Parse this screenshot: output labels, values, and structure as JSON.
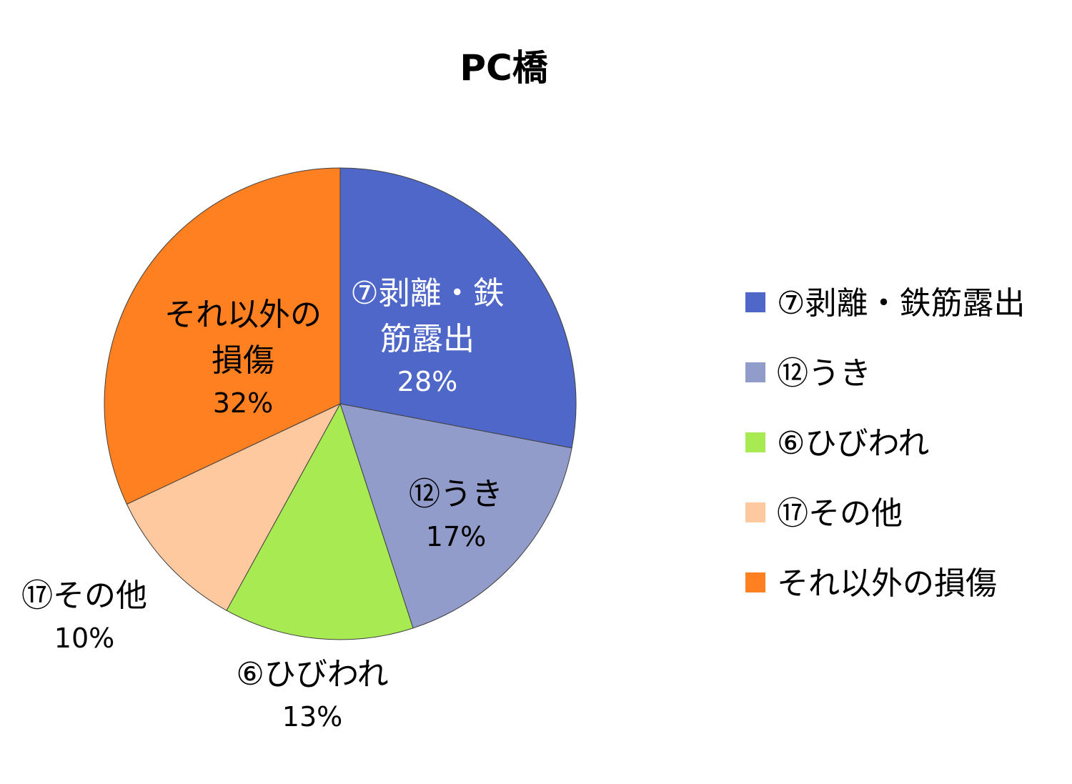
{
  "chart_data": {
    "type": "pie",
    "title": "PC橋",
    "slices": [
      {
        "name": "⑦剥離・鉄筋露出",
        "label_lines": [
          "⑦剥離・鉄",
          "筋露出"
        ],
        "value": 28,
        "pct_label": "28%",
        "color": "#4E67C8"
      },
      {
        "name": "⑫うき",
        "label_lines": [
          "⑫うき"
        ],
        "value": 17,
        "pct_label": "17%",
        "color": "#929CCB"
      },
      {
        "name": "⑥ひびわれ",
        "label_lines": [
          "⑥ひびわれ"
        ],
        "value": 13,
        "pct_label": "13%",
        "color": "#A7EA52"
      },
      {
        "name": "⑰その他",
        "label_lines": [
          "⑰その他"
        ],
        "value": 10,
        "pct_label": "10%",
        "color": "#FFC99F"
      },
      {
        "name": "それ以外の損傷",
        "label_lines": [
          "それ以外の",
          "損傷"
        ],
        "value": 32,
        "pct_label": "32%",
        "color": "#FF8021"
      }
    ],
    "legend_position": "right"
  }
}
